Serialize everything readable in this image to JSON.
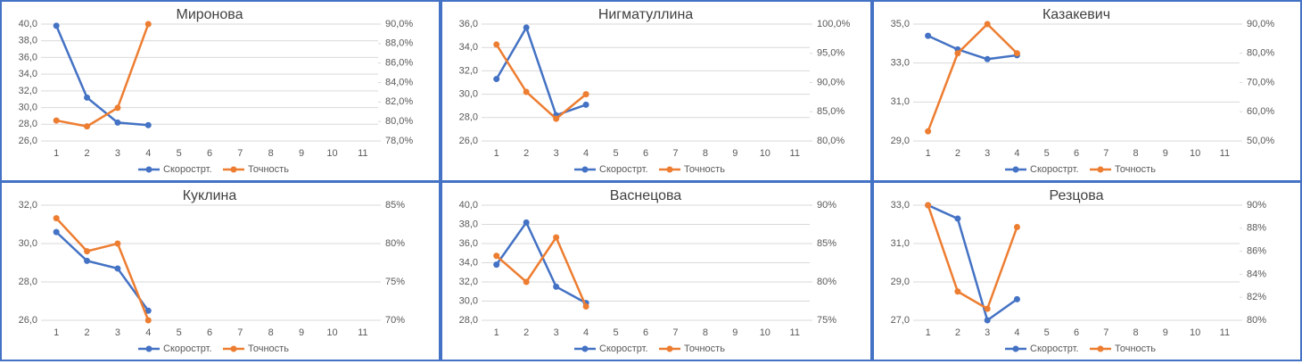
{
  "chart_data": [
    {
      "type": "line",
      "title": "Миронова",
      "categories": [
        "1",
        "2",
        "3",
        "4",
        "5",
        "6",
        "7",
        "8",
        "9",
        "10",
        "11"
      ],
      "series": [
        {
          "name": "Скорострт.",
          "color": "#4472c4",
          "values": [
            39.8,
            31.2,
            28.2,
            27.9,
            null,
            null,
            null,
            null,
            null,
            null,
            null
          ]
        },
        {
          "name": "Точность",
          "color": "#ed7d31",
          "axis": "y2",
          "values": [
            80.1,
            79.5,
            81.4,
            90.0,
            null,
            null,
            null,
            null,
            null,
            null,
            null
          ]
        }
      ],
      "ylim": [
        26,
        40
      ],
      "yticks": [
        {
          "value": 26,
          "label": "26,0"
        },
        {
          "value": 28,
          "label": "28,0"
        },
        {
          "value": 30,
          "label": "30,0"
        },
        {
          "value": 32,
          "label": "32,0"
        },
        {
          "value": 34,
          "label": "34,0"
        },
        {
          "value": 36,
          "label": "36,0"
        },
        {
          "value": 38,
          "label": "38,0"
        },
        {
          "value": 40,
          "label": "40,0"
        }
      ],
      "y2lim": [
        78,
        90
      ],
      "y2ticks": [
        {
          "value": 78,
          "label": "78,0%"
        },
        {
          "value": 80,
          "label": "80,0%"
        },
        {
          "value": 82,
          "label": "82,0%"
        },
        {
          "value": 84,
          "label": "84,0%"
        },
        {
          "value": 86,
          "label": "86,0%"
        },
        {
          "value": 88,
          "label": "88,0%"
        },
        {
          "value": 90,
          "label": "90,0%"
        }
      ],
      "grid": true
    },
    {
      "type": "line",
      "title": "Нигматуллина",
      "categories": [
        "1",
        "2",
        "3",
        "4",
        "5",
        "6",
        "7",
        "8",
        "9",
        "10",
        "11"
      ],
      "series": [
        {
          "name": "Скорострт.",
          "color": "#4472c4",
          "values": [
            31.3,
            35.7,
            28.2,
            29.1,
            null,
            null,
            null,
            null,
            null,
            null,
            null
          ]
        },
        {
          "name": "Точность",
          "color": "#ed7d31",
          "axis": "y2",
          "values": [
            96.5,
            88.4,
            83.8,
            88.0,
            null,
            null,
            null,
            null,
            null,
            null,
            null
          ]
        }
      ],
      "ylim": [
        26,
        36
      ],
      "yticks": [
        {
          "value": 26,
          "label": "26,0"
        },
        {
          "value": 28,
          "label": "28,0"
        },
        {
          "value": 30,
          "label": "30,0"
        },
        {
          "value": 32,
          "label": "32,0"
        },
        {
          "value": 34,
          "label": "34,0"
        },
        {
          "value": 36,
          "label": "36,0"
        }
      ],
      "y2lim": [
        80,
        100
      ],
      "y2ticks": [
        {
          "value": 80,
          "label": "80,0%"
        },
        {
          "value": 85,
          "label": "85,0%"
        },
        {
          "value": 90,
          "label": "90,0%"
        },
        {
          "value": 95,
          "label": "95,0%"
        },
        {
          "value": 100,
          "label": "100,0%"
        }
      ],
      "grid": true
    },
    {
      "type": "line",
      "title": "Казакевич",
      "categories": [
        "1",
        "2",
        "3",
        "4",
        "5",
        "6",
        "7",
        "8",
        "9",
        "10",
        "11"
      ],
      "series": [
        {
          "name": "Скорострт.",
          "color": "#4472c4",
          "values": [
            34.4,
            33.7,
            33.2,
            33.4,
            null,
            null,
            null,
            null,
            null,
            null,
            null
          ]
        },
        {
          "name": "Точность",
          "color": "#ed7d31",
          "axis": "y2",
          "values": [
            53.3,
            80.0,
            90.0,
            80.0,
            null,
            null,
            null,
            null,
            null,
            null,
            null
          ]
        }
      ],
      "ylim": [
        29,
        35
      ],
      "yticks": [
        {
          "value": 29,
          "label": "29,0"
        },
        {
          "value": 31,
          "label": "31,0"
        },
        {
          "value": 33,
          "label": "33,0"
        },
        {
          "value": 35,
          "label": "35,0"
        }
      ],
      "y2lim": [
        50,
        90
      ],
      "y2ticks": [
        {
          "value": 50,
          "label": "50,0%"
        },
        {
          "value": 60,
          "label": "60,0%"
        },
        {
          "value": 70,
          "label": "70,0%"
        },
        {
          "value": 80,
          "label": "80,0%"
        },
        {
          "value": 90,
          "label": "90,0%"
        }
      ],
      "grid": true
    },
    {
      "type": "line",
      "title": "Куклина",
      "categories": [
        "1",
        "2",
        "3",
        "4",
        "5",
        "6",
        "7",
        "8",
        "9",
        "10",
        "11"
      ],
      "series": [
        {
          "name": "Скорострт.",
          "color": "#4472c4",
          "values": [
            30.6,
            29.1,
            28.7,
            26.5,
            null,
            null,
            null,
            null,
            null,
            null,
            null
          ]
        },
        {
          "name": "Точность",
          "color": "#ed7d31",
          "axis": "y2",
          "values": [
            83.3,
            79.0,
            80.0,
            70.0,
            null,
            null,
            null,
            null,
            null,
            null,
            null
          ]
        }
      ],
      "ylim": [
        26,
        32
      ],
      "yticks": [
        {
          "value": 26,
          "label": "26,0"
        },
        {
          "value": 28,
          "label": "28,0"
        },
        {
          "value": 30,
          "label": "30,0"
        },
        {
          "value": 32,
          "label": "32,0"
        }
      ],
      "y2lim": [
        70,
        85
      ],
      "y2ticks": [
        {
          "value": 70,
          "label": "70%"
        },
        {
          "value": 75,
          "label": "75%"
        },
        {
          "value": 80,
          "label": "80%"
        },
        {
          "value": 85,
          "label": "85%"
        }
      ],
      "grid": true
    },
    {
      "type": "line",
      "title": "Васнецова",
      "categories": [
        "1",
        "2",
        "3",
        "4",
        "5",
        "6",
        "7",
        "8",
        "9",
        "10",
        "11"
      ],
      "series": [
        {
          "name": "Скорострт.",
          "color": "#4472c4",
          "values": [
            33.8,
            38.2,
            31.5,
            29.8,
            null,
            null,
            null,
            null,
            null,
            null,
            null
          ]
        },
        {
          "name": "Точность",
          "color": "#ed7d31",
          "axis": "y2",
          "values": [
            83.4,
            80.0,
            85.8,
            76.8,
            null,
            null,
            null,
            null,
            null,
            null,
            null
          ]
        }
      ],
      "ylim": [
        28,
        40
      ],
      "yticks": [
        {
          "value": 28,
          "label": "28,0"
        },
        {
          "value": 30,
          "label": "30,0"
        },
        {
          "value": 32,
          "label": "32,0"
        },
        {
          "value": 34,
          "label": "34,0"
        },
        {
          "value": 36,
          "label": "36,0"
        },
        {
          "value": 38,
          "label": "38,0"
        },
        {
          "value": 40,
          "label": "40,0"
        }
      ],
      "y2lim": [
        75,
        90
      ],
      "y2ticks": [
        {
          "value": 75,
          "label": "75%"
        },
        {
          "value": 80,
          "label": "80%"
        },
        {
          "value": 85,
          "label": "85%"
        },
        {
          "value": 90,
          "label": "90%"
        }
      ],
      "grid": true
    },
    {
      "type": "line",
      "title": "Резцова",
      "categories": [
        "1",
        "2",
        "3",
        "4",
        "5",
        "6",
        "7",
        "8",
        "9",
        "10",
        "11"
      ],
      "series": [
        {
          "name": "Скорострт.",
          "color": "#4472c4",
          "values": [
            33.0,
            32.3,
            27.0,
            28.1,
            null,
            null,
            null,
            null,
            null,
            null,
            null
          ]
        },
        {
          "name": "Точность",
          "color": "#ed7d31",
          "axis": "y2",
          "values": [
            90.0,
            82.5,
            81.0,
            88.1,
            null,
            null,
            null,
            null,
            null,
            null,
            null
          ]
        }
      ],
      "ylim": [
        27,
        33
      ],
      "yticks": [
        {
          "value": 27,
          "label": "27,0"
        },
        {
          "value": 29,
          "label": "29,0"
        },
        {
          "value": 31,
          "label": "31,0"
        },
        {
          "value": 33,
          "label": "33,0"
        }
      ],
      "y2lim": [
        80,
        90
      ],
      "y2ticks": [
        {
          "value": 80,
          "label": "80%"
        },
        {
          "value": 82,
          "label": "82%"
        },
        {
          "value": 84,
          "label": "84%"
        },
        {
          "value": 86,
          "label": "86%"
        },
        {
          "value": 88,
          "label": "88%"
        },
        {
          "value": 90,
          "label": "90%"
        }
      ],
      "grid": true
    }
  ]
}
